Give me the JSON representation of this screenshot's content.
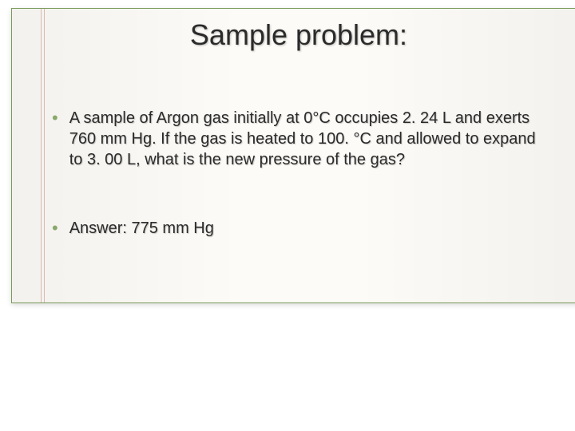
{
  "slide": {
    "title": "Sample problem:",
    "bullets": [
      {
        "text": "A sample of Argon gas initially at 0°C occupies 2. 24 L and exerts 760 mm Hg.  If the gas is heated to 100. °C and allowed to expand to 3. 00 L, what is the new pressure of the gas?"
      },
      {
        "text": "Answer:  775 mm Hg"
      }
    ]
  },
  "style": {
    "background_color": "#fdfbf7",
    "border_color": "#7a9b5c",
    "bullet_color": "#8aa86b",
    "text_color": "#2b2b2b",
    "title_fontsize": 36,
    "body_fontsize": 20,
    "margin_line_color": "rgba(170,80,60,0.35)"
  }
}
